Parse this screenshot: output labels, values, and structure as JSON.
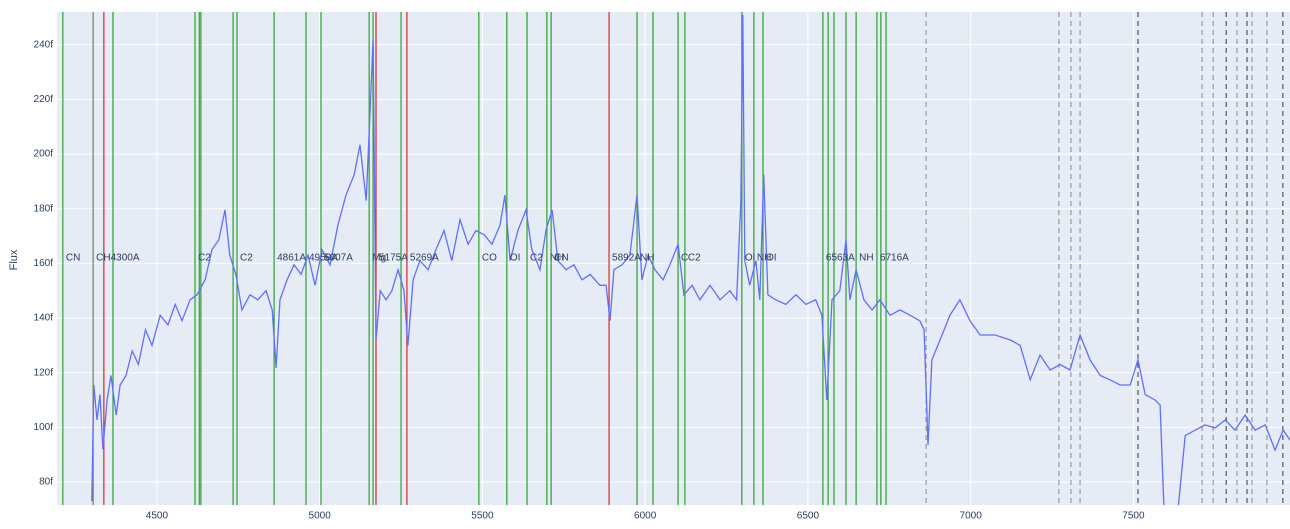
{
  "chart_data": {
    "type": "line",
    "ylabel": "Flux",
    "xlim": [
      4193,
      7981
    ],
    "ylim": [
      71.6,
      252
    ],
    "xticks": [
      4500,
      5000,
      5500,
      6000,
      6500,
      7000,
      7500
    ],
    "yticks": [
      {
        "value": 80,
        "label": "80f"
      },
      {
        "value": 100,
        "label": "100f"
      },
      {
        "value": 120,
        "label": "120f"
      },
      {
        "value": 140,
        "label": "140f"
      },
      {
        "value": 160,
        "label": "160f"
      },
      {
        "value": 180,
        "label": "180f"
      },
      {
        "value": 200,
        "label": "200f"
      },
      {
        "value": 220,
        "label": "220f"
      },
      {
        "value": 240,
        "label": "240f"
      }
    ],
    "grid": true,
    "series": [
      {
        "color": "#636efa",
        "x": [
          4300,
          4306,
          4316,
          4325,
          4334,
          4347,
          4359,
          4375,
          4387,
          4405,
          4424,
          4443,
          4465,
          4485,
          4510,
          4534,
          4556,
          4577,
          4602,
          4623,
          4648,
          4669,
          4690,
          4709,
          4724,
          4743,
          4761,
          4786,
          4810,
          4835,
          4854,
          4866,
          4878,
          4900,
          4921,
          4943,
          4964,
          4986,
          5007,
          5032,
          5056,
          5081,
          5106,
          5124,
          5143,
          5155,
          5164,
          5173,
          5186,
          5204,
          5222,
          5241,
          5259,
          5271,
          5287,
          5308,
          5333,
          5357,
          5382,
          5406,
          5431,
          5456,
          5480,
          5505,
          5529,
          5554,
          5569,
          5585,
          5609,
          5634,
          5652,
          5677,
          5695,
          5714,
          5732,
          5757,
          5781,
          5806,
          5831,
          5861,
          5880,
          5892,
          5904,
          5929,
          5953,
          5975,
          5990,
          6009,
          6030,
          6055,
          6076,
          6101,
          6119,
          6144,
          6168,
          6199,
          6230,
          6260,
          6281,
          6294,
          6300,
          6306,
          6321,
          6340,
          6352,
          6364,
          6377,
          6401,
          6432,
          6463,
          6494,
          6524,
          6543,
          6558,
          6574,
          6598,
          6617,
          6629,
          6648,
          6672,
          6697,
          6721,
          6752,
          6783,
          6814,
          6844,
          6857,
          6869,
          6881,
          6906,
          6936,
          6967,
          6998,
          7029,
          7075,
          7121,
          7152,
          7183,
          7213,
          7244,
          7275,
          7305,
          7336,
          7367,
          7398,
          7428,
          7459,
          7490,
          7514,
          7536,
          7567,
          7582,
          7594,
          7637,
          7659,
          7690,
          7720,
          7751,
          7782,
          7812,
          7843,
          7874,
          7905,
          7935,
          7960,
          7981
        ],
        "values": [
          73,
          115.5,
          102.7,
          112,
          92,
          110,
          119,
          104.5,
          115.5,
          119,
          128,
          123,
          135.7,
          130,
          141,
          137.5,
          145,
          139,
          146.7,
          148.5,
          154,
          165,
          168.6,
          179.6,
          163,
          155.8,
          143,
          148.5,
          146.7,
          150,
          143,
          121.8,
          146.7,
          154,
          159.5,
          156,
          163,
          152,
          165,
          159.5,
          174,
          185,
          192.5,
          203.4,
          183,
          216,
          242,
          132,
          150,
          146.7,
          150,
          157.7,
          150,
          130,
          154,
          161,
          157.7,
          165,
          172,
          161,
          176,
          167,
          172,
          170.5,
          167,
          174,
          185,
          161,
          172,
          179.6,
          165,
          157.7,
          172,
          179.6,
          161,
          157.7,
          159.5,
          154,
          156,
          152,
          152,
          139,
          157.7,
          159.5,
          163,
          185,
          154,
          163,
          157.7,
          154,
          159.5,
          167,
          148.5,
          152,
          146.7,
          152,
          146.7,
          150,
          146.7,
          183,
          251,
          161,
          152,
          161,
          146.7,
          192.5,
          148.5,
          146.7,
          145,
          148.5,
          145,
          146.7,
          141,
          110,
          146.7,
          150,
          168.6,
          146.7,
          157.7,
          146.7,
          143,
          146.7,
          141,
          143,
          141,
          139,
          135.7,
          93.6,
          124.7,
          132,
          141,
          146.7,
          139,
          133.8,
          133.8,
          132,
          130,
          117.4,
          126.5,
          121,
          123,
          121,
          133.8,
          124.7,
          119,
          117.4,
          115.5,
          115.5,
          124.7,
          112,
          110,
          108.2,
          70,
          70,
          97,
          99,
          100.9,
          99.8,
          102.7,
          99,
          104.5,
          99,
          100.9,
          91.7,
          99,
          95.4
        ]
      }
    ],
    "vlines": [
      {
        "x": 4211,
        "color": "#2ca02c",
        "label": "CN"
      },
      {
        "x": 4304,
        "color": "#7f7f3f",
        "label": "CH4300A"
      },
      {
        "x": 4337,
        "color": "#d62728"
      },
      {
        "x": 4365,
        "color": "#2ca02c"
      },
      {
        "x": 4617,
        "color": "#2ca02c",
        "label": "C2"
      },
      {
        "x": 4630,
        "color": "#2ca02c"
      },
      {
        "x": 4635,
        "color": "#2ca02c"
      },
      {
        "x": 4734,
        "color": "#2ca02c"
      },
      {
        "x": 4746,
        "color": "#2ca02c",
        "label": "C2"
      },
      {
        "x": 4860,
        "color": "#2ca02c",
        "label": "4861A"
      },
      {
        "x": 4958,
        "color": "#2ca02c",
        "label": "4959A"
      },
      {
        "x": 5004,
        "color": "#2ca02c",
        "label": "5007A"
      },
      {
        "x": 5152,
        "color": "#2ca02c",
        "label": "Mg"
      },
      {
        "x": 5164,
        "color": "#2ca02c"
      },
      {
        "x": 5173,
        "color": "#d62728",
        "label": "5175A"
      },
      {
        "x": 5250,
        "color": "#2ca02c"
      },
      {
        "x": 5268,
        "color": "#d62728",
        "label": "5269A"
      },
      {
        "x": 5489,
        "color": "#2ca02c",
        "label": "CO"
      },
      {
        "x": 5575,
        "color": "#2ca02c",
        "label": "OI"
      },
      {
        "x": 5637,
        "color": "#2ca02c",
        "label": "C2"
      },
      {
        "x": 5698,
        "color": "#2ca02c",
        "label": "NH"
      },
      {
        "x": 5711,
        "color": "#2ca02c",
        "label": "CN"
      },
      {
        "x": 5889,
        "color": "#d62728",
        "label": "5892A"
      },
      {
        "x": 5975,
        "color": "#2ca02c",
        "label": "NH"
      },
      {
        "x": 6024,
        "color": "#2ca02c"
      },
      {
        "x": 6101,
        "color": "#2ca02c",
        "label": "C"
      },
      {
        "x": 6122,
        "color": "#2ca02c",
        "label": "C2"
      },
      {
        "x": 6297,
        "color": "#2ca02c",
        "label": "OI"
      },
      {
        "x": 6334,
        "color": "#2ca02c",
        "label": "NH"
      },
      {
        "x": 6362,
        "color": "#2ca02c",
        "label": "OI"
      },
      {
        "x": 6546,
        "color": "#2ca02c",
        "label": "6563A"
      },
      {
        "x": 6562,
        "color": "#2ca02c"
      },
      {
        "x": 6580,
        "color": "#2ca02c"
      },
      {
        "x": 6617,
        "color": "#2ca02c"
      },
      {
        "x": 6648,
        "color": "#2ca02c",
        "label": "NH"
      },
      {
        "x": 6712,
        "color": "#2ca02c",
        "label": "6716A"
      },
      {
        "x": 6724,
        "color": "#2ca02c"
      },
      {
        "x": 6740,
        "color": "#2ca02c"
      },
      {
        "x": 6863,
        "color": "#999999",
        "dash": true
      },
      {
        "x": 7271,
        "color": "#999999",
        "dash": true
      },
      {
        "x": 7308,
        "color": "#999999",
        "dash": true
      },
      {
        "x": 7336,
        "color": "#999999",
        "dash": true
      },
      {
        "x": 7514,
        "color": "#555555",
        "dash": true
      },
      {
        "x": 7711,
        "color": "#999999",
        "dash": true
      },
      {
        "x": 7745,
        "color": "#999999",
        "dash": true
      },
      {
        "x": 7785,
        "color": "#555555",
        "dash": true
      },
      {
        "x": 7818,
        "color": "#999999",
        "dash": true
      },
      {
        "x": 7849,
        "color": "#555555",
        "dash": true
      },
      {
        "x": 7864,
        "color": "#999999",
        "dash": true
      },
      {
        "x": 7910,
        "color": "#999999",
        "dash": true
      },
      {
        "x": 7959,
        "color": "#555555",
        "dash": true
      }
    ]
  }
}
